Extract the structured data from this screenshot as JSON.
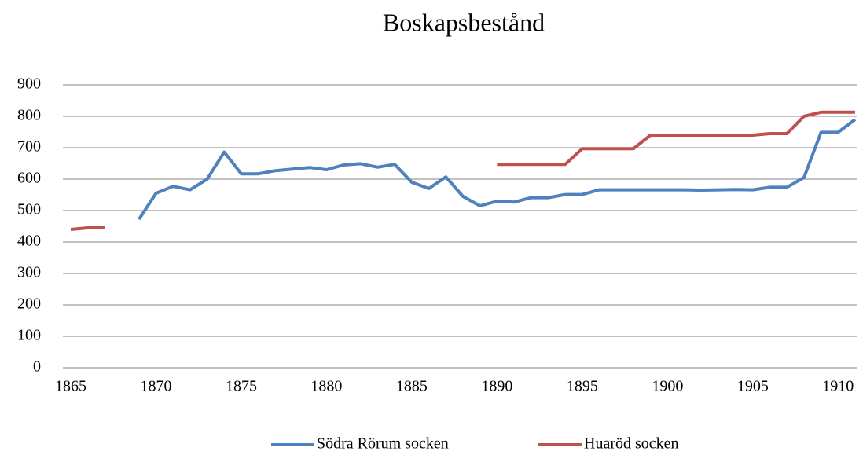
{
  "chart_data": {
    "type": "line",
    "title": "Boskapsbestånd",
    "x": [
      1865,
      1866,
      1867,
      1868,
      1869,
      1870,
      1871,
      1872,
      1873,
      1874,
      1875,
      1876,
      1877,
      1878,
      1879,
      1880,
      1881,
      1882,
      1883,
      1884,
      1885,
      1886,
      1887,
      1888,
      1889,
      1890,
      1891,
      1892,
      1893,
      1894,
      1895,
      1896,
      1897,
      1898,
      1899,
      1900,
      1901,
      1902,
      1903,
      1904,
      1905,
      1906,
      1907,
      1908,
      1909,
      1910,
      1911
    ],
    "series": [
      {
        "name": "Södra Rörum socken",
        "color": "#4f81bd",
        "values": [
          null,
          null,
          null,
          null,
          472,
          555,
          577,
          566,
          600,
          686,
          617,
          617,
          627,
          632,
          637,
          630,
          645,
          649,
          638,
          647,
          590,
          570,
          607,
          545,
          515,
          530,
          527,
          541,
          541,
          551,
          551,
          566,
          566,
          566,
          566,
          566,
          566,
          565,
          566,
          567,
          566,
          574,
          574,
          605,
          749,
          749,
          790
        ]
      },
      {
        "name": "Huaröd socken",
        "color": "#c0504d",
        "values": [
          440,
          445,
          445,
          null,
          null,
          null,
          null,
          null,
          null,
          null,
          null,
          null,
          null,
          null,
          null,
          null,
          null,
          null,
          null,
          null,
          null,
          null,
          null,
          null,
          null,
          647,
          647,
          647,
          647,
          647,
          697,
          697,
          697,
          697,
          740,
          740,
          740,
          740,
          740,
          740,
          740,
          745,
          745,
          800,
          813,
          813,
          813
        ]
      }
    ],
    "xlim": [
      1865,
      1911
    ],
    "xticks": [
      1865,
      1870,
      1875,
      1880,
      1885,
      1890,
      1895,
      1900,
      1905,
      1910
    ],
    "ylim": [
      0,
      900
    ],
    "yticks": [
      0,
      100,
      200,
      300,
      400,
      500,
      600,
      700,
      800,
      900
    ],
    "grid": true,
    "legend": "bottom"
  }
}
